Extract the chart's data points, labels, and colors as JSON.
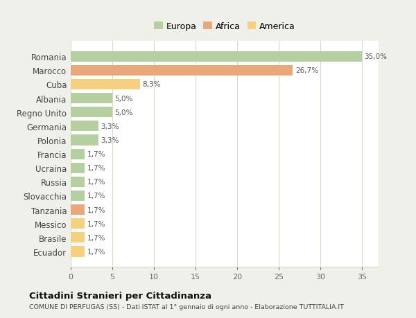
{
  "countries": [
    "Romania",
    "Marocco",
    "Cuba",
    "Albania",
    "Regno Unito",
    "Germania",
    "Polonia",
    "Francia",
    "Ucraina",
    "Russia",
    "Slovacchia",
    "Tanzania",
    "Messico",
    "Brasile",
    "Ecuador"
  ],
  "values": [
    35.0,
    26.7,
    8.3,
    5.0,
    5.0,
    3.3,
    3.3,
    1.7,
    1.7,
    1.7,
    1.7,
    1.7,
    1.7,
    1.7,
    1.7
  ],
  "labels": [
    "35,0%",
    "26,7%",
    "8,3%",
    "5,0%",
    "5,0%",
    "3,3%",
    "3,3%",
    "1,7%",
    "1,7%",
    "1,7%",
    "1,7%",
    "1,7%",
    "1,7%",
    "1,7%",
    "1,7%"
  ],
  "colors": [
    "#b5cfa0",
    "#e8a87c",
    "#f5d080",
    "#b5cfa0",
    "#b5cfa0",
    "#b5cfa0",
    "#b5cfa0",
    "#b5cfa0",
    "#b5cfa0",
    "#b5cfa0",
    "#b5cfa0",
    "#e8a87c",
    "#f5d080",
    "#f5d080",
    "#f5d080"
  ],
  "legend_labels": [
    "Europa",
    "Africa",
    "America"
  ],
  "legend_colors": [
    "#b5cfa0",
    "#e8a87c",
    "#f5d080"
  ],
  "title": "Cittadini Stranieri per Cittadinanza",
  "subtitle": "COMUNE DI PERFUGAS (SS) - Dati ISTAT al 1° gennaio di ogni anno - Elaborazione TUTTITALIA.IT",
  "xlim": [
    0,
    37
  ],
  "xticks": [
    0,
    5,
    10,
    15,
    20,
    25,
    30,
    35
  ],
  "fig_bg_color": "#f0f0eb",
  "plot_bg_color": "#ffffff",
  "grid_color": "#d8d8d0"
}
